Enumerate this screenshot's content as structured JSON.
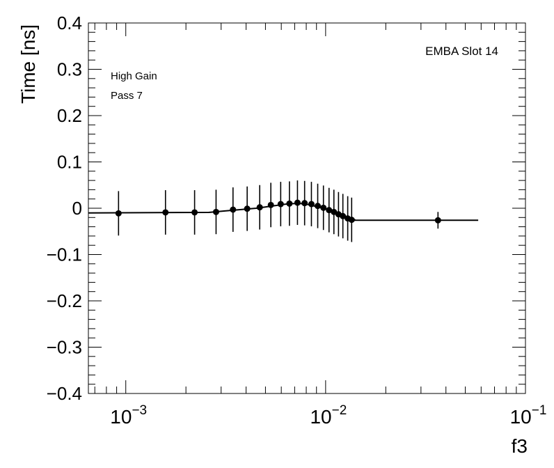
{
  "chart_data": {
    "type": "scatter",
    "xlabel": "f3",
    "ylabel": "Time [ns]",
    "xscale": "log",
    "xlim": [
      0.00065,
      0.1
    ],
    "ylim": [
      -0.4,
      0.4
    ],
    "grid": false,
    "annotations": {
      "top_right": "EMBA Slot 14",
      "top_left_1": "High Gain",
      "top_left_2": "Pass 7"
    },
    "x_ticks": [
      {
        "value": 0.001,
        "base": "10",
        "exp": "−3"
      },
      {
        "value": 0.01,
        "base": "10",
        "exp": "−2"
      },
      {
        "value": 0.1,
        "base": "10",
        "exp": "−1"
      }
    ],
    "y_ticks": [
      {
        "value": 0.4,
        "label": "0.4"
      },
      {
        "value": 0.3,
        "label": "0.3"
      },
      {
        "value": 0.2,
        "label": "0.2"
      },
      {
        "value": 0.1,
        "label": "0.1"
      },
      {
        "value": 0.0,
        "label": "0"
      },
      {
        "value": -0.1,
        "label": "−0.1"
      },
      {
        "value": -0.2,
        "label": "−0.2"
      },
      {
        "value": -0.3,
        "label": "−0.3"
      },
      {
        "value": -0.4,
        "label": "−0.4"
      }
    ],
    "series": [
      {
        "x": [
          0.00092,
          0.00158,
          0.00221,
          0.00283,
          0.00344,
          0.00405,
          0.00468,
          0.00532,
          0.00596,
          0.00659,
          0.00723,
          0.00785,
          0.00849,
          0.00913,
          0.00975,
          0.0104,
          0.011,
          0.0116,
          0.0122,
          0.0129,
          0.0135,
          0.0365
        ],
        "y": [
          -0.011,
          -0.009,
          -0.009,
          -0.008,
          -0.003,
          -0.001,
          0.002,
          0.007,
          0.009,
          0.01,
          0.012,
          0.011,
          0.009,
          0.005,
          0.001,
          -0.004,
          -0.008,
          -0.013,
          -0.017,
          -0.022,
          -0.025,
          -0.026
        ],
        "err": [
          0.048,
          0.048,
          0.048,
          0.048,
          0.048,
          0.048,
          0.048,
          0.048,
          0.048,
          0.048,
          0.048,
          0.048,
          0.048,
          0.048,
          0.048,
          0.048,
          0.048,
          0.048,
          0.048,
          0.048,
          0.048,
          0.018
        ]
      }
    ],
    "fit_line": {
      "x": [
        0.00065,
        0.0026,
        0.0031,
        0.0045,
        0.0066,
        0.0078,
        0.01,
        0.014,
        0.014,
        0.058
      ],
      "y": [
        -0.01,
        -0.009,
        -0.006,
        0.0,
        0.01,
        0.01,
        -0.001,
        -0.025,
        -0.026,
        -0.026
      ]
    }
  }
}
